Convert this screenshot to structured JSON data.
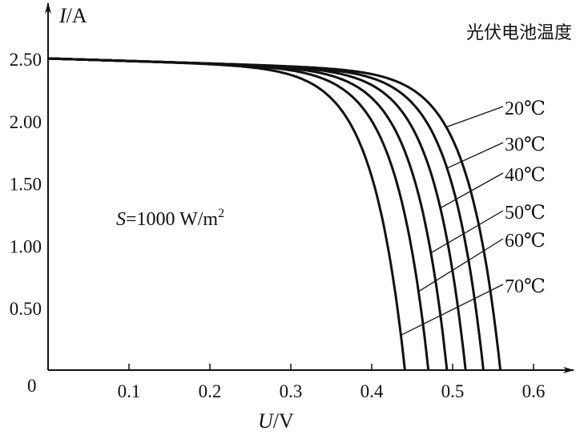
{
  "chart_data": {
    "type": "line",
    "title": "光伏电池温度",
    "xlabel_italic": "U",
    "xlabel_unit": "/V",
    "ylabel_italic": "I",
    "ylabel_unit": "/A",
    "xlim": [
      0,
      0.7
    ],
    "ylim": [
      0,
      2.7
    ],
    "x_ticks": [
      "0.1",
      "0.2",
      "0.3",
      "0.4",
      "0.5",
      "0.6"
    ],
    "x_tick_values": [
      0.1,
      0.2,
      0.3,
      0.4,
      0.5,
      0.6
    ],
    "y_ticks": [
      "0.50",
      "1.00",
      "1.50",
      "2.00",
      "2.50"
    ],
    "y_tick_values": [
      0.5,
      1.0,
      1.5,
      2.0,
      2.5
    ],
    "origin_label": "0",
    "grid": false,
    "annotation": {
      "italic": "S",
      "text": "=1000 W/m",
      "sup": "2"
    },
    "isc": 2.5,
    "series_slope": 0.2,
    "thermal_voltage": 0.04,
    "series": [
      {
        "name": "20℃",
        "voc": 0.559
      },
      {
        "name": "30℃",
        "voc": 0.538
      },
      {
        "name": "40℃",
        "voc": 0.516
      },
      {
        "name": "50℃",
        "voc": 0.493
      },
      {
        "name": "60℃",
        "voc": 0.47
      },
      {
        "name": "70℃",
        "voc": 0.441
      }
    ]
  }
}
